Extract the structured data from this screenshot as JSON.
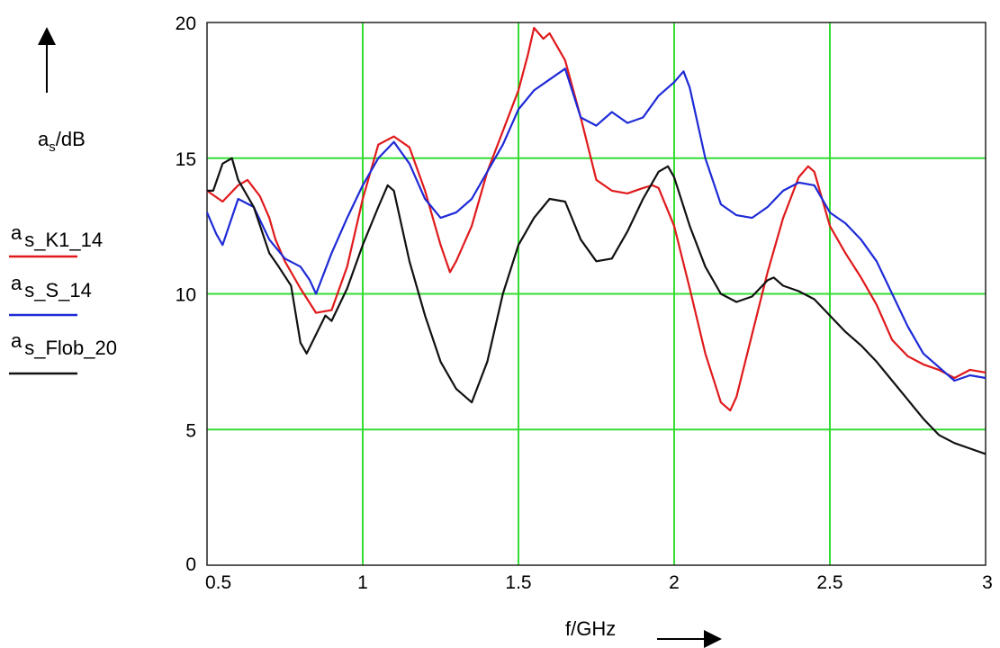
{
  "chart_data": {
    "type": "line",
    "xlabel": "f/GHz",
    "ylabel": {
      "main": "a",
      "sub": "s",
      "unit": "/dB"
    },
    "xlim": [
      0.5,
      3
    ],
    "ylim": [
      0,
      20
    ],
    "xticks": [
      0.5,
      1,
      1.5,
      2,
      2.5,
      3
    ],
    "yticks": [
      0,
      5,
      10,
      15,
      20
    ],
    "x_tick_labels": [
      "0.5",
      "1",
      "1.5",
      "2",
      "2.5",
      "3"
    ],
    "y_tick_labels": [
      "0",
      "5",
      "10",
      "15",
      "20"
    ],
    "grid": true,
    "grid_color": "#33dd33",
    "legend_position": "left",
    "series": [
      {
        "name": "a s_K1_14",
        "legend_main": "a",
        "legend_sub": "s_K1_14",
        "color": "#e0191b",
        "x": [
          0.5,
          0.55,
          0.6,
          0.63,
          0.67,
          0.7,
          0.72,
          0.75,
          0.8,
          0.85,
          0.9,
          0.95,
          1.0,
          1.05,
          1.1,
          1.15,
          1.2,
          1.25,
          1.28,
          1.3,
          1.35,
          1.4,
          1.45,
          1.5,
          1.53,
          1.55,
          1.58,
          1.6,
          1.63,
          1.65,
          1.7,
          1.75,
          1.8,
          1.85,
          1.9,
          1.93,
          1.95,
          2.0,
          2.05,
          2.1,
          2.15,
          2.18,
          2.2,
          2.25,
          2.3,
          2.35,
          2.4,
          2.43,
          2.45,
          2.5,
          2.55,
          2.6,
          2.65,
          2.7,
          2.75,
          2.8,
          2.85,
          2.9,
          2.95,
          3.0
        ],
        "y": [
          13.8,
          13.4,
          14.0,
          14.2,
          13.6,
          12.8,
          12.0,
          11.2,
          10.2,
          9.3,
          9.4,
          11.0,
          13.5,
          15.5,
          15.8,
          15.4,
          13.8,
          11.8,
          10.8,
          11.2,
          12.5,
          14.5,
          16.0,
          17.5,
          18.8,
          19.8,
          19.4,
          19.6,
          19.0,
          18.6,
          16.5,
          14.2,
          13.8,
          13.7,
          13.9,
          14.0,
          13.9,
          12.5,
          10.2,
          7.8,
          6.0,
          5.7,
          6.2,
          8.5,
          10.8,
          12.8,
          14.3,
          14.7,
          14.5,
          12.5,
          11.5,
          10.6,
          9.6,
          8.3,
          7.7,
          7.4,
          7.2,
          6.9,
          7.2,
          7.1
        ]
      },
      {
        "name": "a s_S_14",
        "legend_main": "a",
        "legend_sub": "s_S_14",
        "color": "#1e2ad6",
        "x": [
          0.5,
          0.53,
          0.55,
          0.6,
          0.65,
          0.7,
          0.75,
          0.8,
          0.83,
          0.85,
          0.9,
          0.95,
          1.0,
          1.05,
          1.1,
          1.15,
          1.2,
          1.25,
          1.3,
          1.35,
          1.4,
          1.45,
          1.5,
          1.55,
          1.6,
          1.65,
          1.7,
          1.75,
          1.8,
          1.85,
          1.9,
          1.95,
          2.0,
          2.03,
          2.05,
          2.1,
          2.15,
          2.2,
          2.25,
          2.3,
          2.35,
          2.4,
          2.45,
          2.5,
          2.55,
          2.6,
          2.65,
          2.7,
          2.75,
          2.8,
          2.85,
          2.9,
          2.95,
          3.0
        ],
        "y": [
          13.0,
          12.2,
          11.8,
          13.5,
          13.2,
          12.0,
          11.3,
          11.0,
          10.5,
          10.0,
          11.5,
          12.8,
          14.0,
          15.0,
          15.6,
          14.8,
          13.5,
          12.8,
          13.0,
          13.5,
          14.5,
          15.5,
          16.8,
          17.5,
          17.9,
          18.3,
          16.5,
          16.2,
          16.7,
          16.3,
          16.5,
          17.3,
          17.8,
          18.2,
          17.6,
          15.0,
          13.3,
          12.9,
          12.8,
          13.2,
          13.8,
          14.1,
          14.0,
          13.0,
          12.6,
          12.0,
          11.2,
          10.0,
          8.8,
          7.8,
          7.3,
          6.8,
          7.0,
          6.9
        ]
      },
      {
        "name": "a s_Flob_20",
        "legend_main": "a",
        "legend_sub": "s_Flob_20",
        "color": "#111111",
        "x": [
          0.5,
          0.52,
          0.55,
          0.58,
          0.6,
          0.65,
          0.7,
          0.73,
          0.77,
          0.8,
          0.82,
          0.85,
          0.88,
          0.9,
          0.95,
          1.0,
          1.05,
          1.08,
          1.1,
          1.15,
          1.2,
          1.25,
          1.3,
          1.35,
          1.4,
          1.45,
          1.5,
          1.55,
          1.6,
          1.65,
          1.7,
          1.75,
          1.8,
          1.85,
          1.9,
          1.95,
          1.98,
          2.0,
          2.05,
          2.1,
          2.15,
          2.2,
          2.25,
          2.3,
          2.32,
          2.35,
          2.4,
          2.45,
          2.5,
          2.55,
          2.6,
          2.65,
          2.7,
          2.75,
          2.8,
          2.85,
          2.9,
          2.95,
          3.0
        ],
        "y": [
          13.8,
          13.8,
          14.8,
          15.0,
          14.2,
          13.2,
          11.5,
          11.0,
          10.3,
          8.2,
          7.8,
          8.5,
          9.2,
          9.0,
          10.2,
          11.8,
          13.2,
          14.0,
          13.8,
          11.2,
          9.2,
          7.5,
          6.5,
          6.0,
          7.5,
          10.0,
          11.8,
          12.8,
          13.5,
          13.4,
          12.0,
          11.2,
          11.3,
          12.3,
          13.5,
          14.5,
          14.7,
          14.3,
          12.5,
          11.0,
          10.0,
          9.7,
          9.9,
          10.5,
          10.6,
          10.3,
          10.1,
          9.8,
          9.2,
          8.6,
          8.1,
          7.5,
          6.8,
          6.1,
          5.4,
          4.8,
          4.5,
          4.3,
          4.1
        ]
      }
    ]
  }
}
